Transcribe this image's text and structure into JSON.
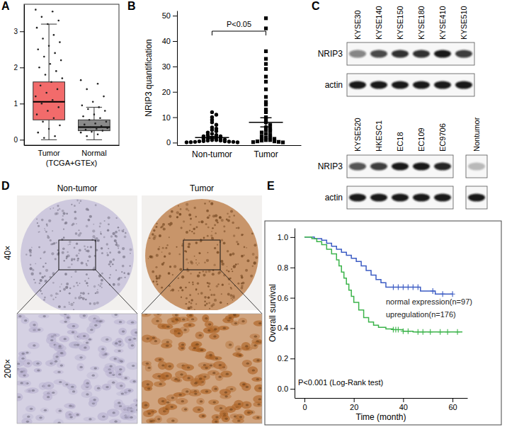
{
  "chart_data": [
    {
      "panel_label": "A",
      "type": "box",
      "categories": [
        "Tumor",
        "Normal"
      ],
      "x_label": "(TCGA+GTEx)",
      "ylim": [
        -0.15,
        3.75
      ],
      "yticks": [
        0,
        1,
        2,
        3
      ],
      "colors": [
        "#f26b6b",
        "#8a8a8a"
      ],
      "boxes": [
        {
          "min": 0.0,
          "q1": 0.55,
          "median": 1.05,
          "q3": 1.6,
          "max": 3.2,
          "points": [
            3.6,
            3.55,
            3.4,
            3.3,
            3.2,
            3.1,
            2.9,
            2.8,
            2.7,
            2.6,
            2.5,
            2.4,
            2.3,
            2.2,
            2.1,
            2.0,
            1.9,
            1.8,
            1.7,
            1.6,
            1.5,
            1.4,
            1.3,
            1.2,
            1.1,
            1.0,
            0.9,
            0.8,
            0.7,
            0.6,
            0.5,
            0.4,
            0.3,
            0.2,
            0.1,
            0.05
          ]
        },
        {
          "min": 0.0,
          "q1": 0.25,
          "median": 0.35,
          "q3": 0.55,
          "max": 0.9,
          "points": [
            1.65,
            1.55,
            1.4,
            1.2,
            1.05,
            0.95,
            0.9,
            0.85,
            0.8,
            0.7,
            0.65,
            0.6,
            0.55,
            0.5,
            0.45,
            0.42,
            0.38,
            0.35,
            0.32,
            0.3,
            0.28,
            0.25,
            0.22,
            0.2,
            0.15,
            0.1
          ]
        }
      ]
    },
    {
      "panel_label": "B",
      "type": "scatter",
      "categories": [
        "Non-tumor",
        "Tumor"
      ],
      "y_label": "NRIP3 quantification",
      "ylim": [
        -1,
        52
      ],
      "yticks": [
        0,
        10,
        20,
        30,
        40,
        50
      ],
      "annotation": "P<0.05",
      "color": "#000000",
      "groups": [
        {
          "marker": "circle",
          "mean": 2.0,
          "sem": 0.45,
          "values": [
            12,
            11,
            10,
            9,
            8,
            7,
            6,
            5.5,
            5,
            4.5,
            4,
            3.5,
            3,
            3,
            2.5,
            2.5,
            2,
            2,
            1.8,
            1.5,
            1.5,
            1.2,
            1,
            1,
            0.8,
            0.8,
            0.6,
            0.5,
            0.5,
            0.4,
            0.3,
            0.3,
            0.2,
            0.1,
            0.1
          ]
        },
        {
          "marker": "square",
          "mean": 8.0,
          "sem": 1.8,
          "values": [
            49,
            45,
            36,
            33,
            31,
            29,
            26,
            24,
            21,
            18,
            16,
            15,
            13,
            12,
            10,
            9,
            8,
            7,
            6,
            5.5,
            5,
            4.5,
            4,
            3.5,
            3,
            2.5,
            2,
            2,
            1.5,
            1.5,
            1,
            1,
            0.8,
            0.5,
            0.5,
            0.3,
            0.2,
            0.1
          ]
        }
      ]
    },
    {
      "panel_label": "C",
      "type": "blot",
      "blots": [
        {
          "lanes": [
            "KYSE30",
            "KYSE140",
            "KYSE150",
            "KYSE180",
            "KYSE410",
            "KYSE510"
          ],
          "rows": [
            {
              "name": "NRIP3",
              "intensity": [
                0.5,
                0.75,
                0.85,
                0.85,
                0.95,
                0.8
              ]
            },
            {
              "name": "actin",
              "intensity": [
                0.95,
                0.95,
                0.95,
                0.95,
                0.95,
                0.95
              ]
            }
          ]
        },
        {
          "lanes": [
            "KYSE520",
            "HKESC1",
            "EC18",
            "EC109",
            "EC9706"
          ],
          "rows": [
            {
              "name": "NRIP3",
              "intensity": [
                0.7,
                0.8,
                0.95,
                0.95,
                0.9
              ]
            },
            {
              "name": "actin",
              "intensity": [
                0.95,
                0.95,
                0.95,
                0.95,
                0.95
              ]
            }
          ]
        },
        {
          "lanes": [
            "Nontumor"
          ],
          "rows": [
            {
              "intensity": [
                0.25
              ]
            },
            {
              "intensity": [
                0.95
              ]
            }
          ]
        }
      ]
    },
    {
      "panel_label": "D",
      "type": "image",
      "columns": [
        "Non-tumor",
        "Tumor"
      ],
      "rows": [
        "40×",
        "200×"
      ],
      "colors": [
        "#b9b2d0",
        "#b0672a"
      ]
    },
    {
      "panel_label": "E",
      "type": "line",
      "x_label": "Time (month)",
      "y_label": "Overall survival",
      "xlim": [
        -4,
        66
      ],
      "ylim": [
        -0.06,
        1.06
      ],
      "xticks": [
        0,
        20,
        40,
        60
      ],
      "yticks": [
        {
          "value": 0,
          "label": "0.0"
        },
        0.2,
        0.4,
        0.6,
        0.8,
        {
          "value": 1,
          "label": "1.0"
        }
      ],
      "annotation": "P<0.001 (Log-Rank test)",
      "line_style": "step",
      "series": [
        {
          "name": "normal expression(n=97)",
          "color": "#3c5cc4",
          "marker": "plus",
          "x": [
            0,
            4,
            7,
            9,
            11,
            13,
            15,
            17,
            19,
            21,
            23,
            25,
            27,
            29,
            31,
            33,
            47,
            53,
            60
          ],
          "values": [
            1.0,
            0.99,
            0.98,
            0.96,
            0.94,
            0.92,
            0.9,
            0.88,
            0.86,
            0.84,
            0.81,
            0.78,
            0.75,
            0.72,
            0.7,
            0.67,
            0.645,
            0.625,
            0.625
          ],
          "censored": [
            36,
            38,
            40,
            42,
            44,
            46,
            52,
            56,
            60
          ]
        },
        {
          "name": "upregulation(n=176)",
          "color": "#3cb44b",
          "marker": "plus",
          "x": [
            0,
            3,
            5,
            7,
            9,
            11,
            13,
            14,
            15,
            16,
            17,
            18,
            19,
            20,
            22,
            24,
            26,
            28,
            30,
            33,
            36,
            40,
            44,
            64
          ],
          "values": [
            1.0,
            0.99,
            0.97,
            0.95,
            0.92,
            0.89,
            0.85,
            0.81,
            0.77,
            0.73,
            0.69,
            0.65,
            0.61,
            0.57,
            0.52,
            0.47,
            0.44,
            0.42,
            0.405,
            0.395,
            0.39,
            0.38,
            0.375,
            0.375
          ],
          "censored": [
            36,
            37,
            38,
            40,
            42,
            46,
            48,
            51,
            55,
            58,
            62
          ]
        }
      ]
    }
  ]
}
